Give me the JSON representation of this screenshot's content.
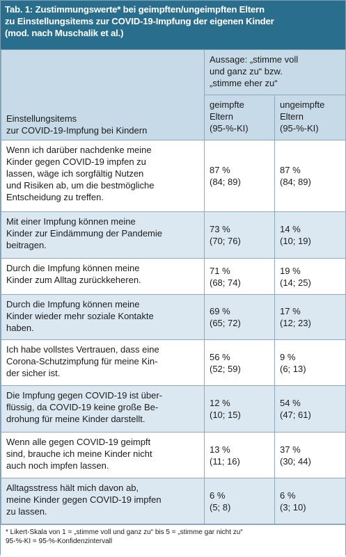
{
  "title": "Tab. 1: Zustimmungswerte* bei geimpften/ungeimpften Eltern\nzu Einstellungsitems zur COVID-19-Impfung der eigenen Kinder\n(mod. nach Muschalik et al.)",
  "table": {
    "header": {
      "items": "Einstellungsitems\nzur COVID-19-Impfung bei Kindern",
      "statement": "Aussage: „stimme voll\nund ganz zu“ bzw.\n„stimme eher zu“",
      "vaccinated": "geimpfte\nEltern\n(95-%-KI)",
      "unvaccinated": "ungeimpfte\nEltern\n(95-%-KI)"
    },
    "rows": [
      {
        "item": "Wenn ich darüber nachdenke meine\nKinder gegen COVID-19 impfen zu\nlassen, wäge ich sorgfältig Nutzen\nund Risiken ab, um die bestmögliche\nEntscheidung zu treffen.",
        "vaccinated": {
          "pct": "87 %",
          "ci": "(84; 89)"
        },
        "unvaccinated": {
          "pct": "87 %",
          "ci": "(84; 89)"
        }
      },
      {
        "item": "Mit einer Impfung können meine\nKinder zur Eindämmung der Pandemie\nbeitragen.",
        "vaccinated": {
          "pct": "73 %",
          "ci": "(70; 76)"
        },
        "unvaccinated": {
          "pct": "14 %",
          "ci": "(10; 19)"
        }
      },
      {
        "item": "Durch die Impfung können meine\nKinder zum Alltag zurückkeheren.",
        "vaccinated": {
          "pct": "71 %",
          "ci": "(68; 74)"
        },
        "unvaccinated": {
          "pct": "19 %",
          "ci": "(14; 25)"
        }
      },
      {
        "item": "Durch die Impfung können meine\nKinder wieder mehr soziale Kontakte\nhaben.",
        "vaccinated": {
          "pct": "69 %",
          "ci": "(65; 72)"
        },
        "unvaccinated": {
          "pct": "17 %",
          "ci": "(12; 23)"
        }
      },
      {
        "item": "Ich habe vollstes Vertrauen, dass eine\nCorona-Schutzimpfung für meine Kin-\nder sicher ist.",
        "vaccinated": {
          "pct": "56 %",
          "ci": "(52; 59)"
        },
        "unvaccinated": {
          "pct": "9 %",
          "ci": "(6; 13)"
        }
      },
      {
        "item": "Die Impfung gegen COVID-19 ist über-\nflüssig, da COVID-19 keine große Be-\ndrohung für meine Kinder darstellt.",
        "vaccinated": {
          "pct": "12 %",
          "ci": "(10; 15)"
        },
        "unvaccinated": {
          "pct": "54 %",
          "ci": "(47; 61)"
        }
      },
      {
        "item": "Wenn alle gegen COVID-19 geimpft\nsind, brauche ich meine Kinder nicht\nauch noch impfen lassen.",
        "vaccinated": {
          "pct": "13 %",
          "ci": "(11; 16)"
        },
        "unvaccinated": {
          "pct": "37 %",
          "ci": "(30; 44)"
        }
      },
      {
        "item": "Alltagsstress hält mich davon ab,\nmeine Kinder gegen COVID-19 impfen\nzu lassen.",
        "vaccinated": {
          "pct": "6 %",
          "ci": "(5; 8)"
        },
        "unvaccinated": {
          "pct": "6 %",
          "ci": "(3; 10)"
        }
      }
    ]
  },
  "footnotes": [
    "* Likert-Skala von 1 = „stimme voll und ganz zu“ bis 5 = „stimme gar nicht zu“",
    "95-%-KI = 95-%-Konfidenzintervall"
  ]
}
